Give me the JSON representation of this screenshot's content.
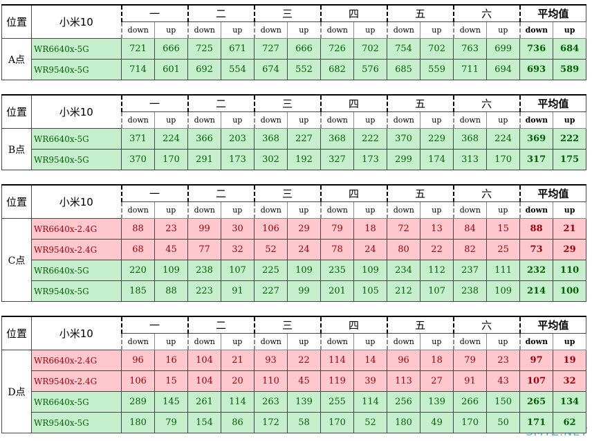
{
  "tables": [
    {
      "header": {
        "position": "位置",
        "device": "小米10",
        "groups": [
          "一",
          "二",
          "三",
          "四",
          "五",
          "六",
          "平均值"
        ],
        "sub": [
          "down",
          "up",
          "down",
          "up",
          "down",
          "up",
          "down",
          "up",
          "down",
          "up",
          "down",
          "up",
          "down",
          "up"
        ]
      },
      "location": "A点",
      "rows": [
        {
          "name": "WR6640x-5G",
          "color": "#c6efce",
          "values": [
            721,
            666,
            725,
            671,
            727,
            666,
            726,
            702,
            754,
            702,
            763,
            699,
            736,
            684
          ]
        },
        {
          "name": "WR9540x-5G",
          "color": "#c6efce",
          "values": [
            714,
            601,
            692,
            554,
            674,
            552,
            682,
            576,
            685,
            559,
            711,
            694,
            693,
            589
          ]
        }
      ]
    },
    {
      "header": {
        "position": "位置",
        "device": "小米10",
        "groups": [
          "一",
          "二",
          "三",
          "四",
          "五",
          "六",
          "平均值"
        ],
        "sub": [
          "down",
          "up",
          "down",
          "up",
          "down",
          "up",
          "down",
          "up",
          "down",
          "up",
          "down",
          "up",
          "down",
          "up"
        ]
      },
      "location": "B点",
      "rows": [
        {
          "name": "WR6640x-5G",
          "color": "#c6efce",
          "values": [
            371,
            224,
            366,
            203,
            368,
            227,
            368,
            222,
            370,
            229,
            368,
            224,
            369,
            222
          ]
        },
        {
          "name": "WR9540x-5G",
          "color": "#c6efce",
          "values": [
            370,
            170,
            291,
            173,
            302,
            192,
            327,
            173,
            299,
            174,
            313,
            170,
            317,
            175
          ]
        }
      ]
    },
    {
      "header": {
        "position": "位置",
        "device": "小米10",
        "groups": [
          "一",
          "二",
          "三",
          "四",
          "五",
          "六",
          "平均值"
        ],
        "sub": [
          "down",
          "up",
          "down",
          "up",
          "down",
          "up",
          "down",
          "up",
          "down",
          "up",
          "down",
          "up",
          "down",
          "up"
        ]
      },
      "location": "C点",
      "rows": [
        {
          "name": "WR6640x-2.4G",
          "color": "#ffc7ce",
          "values": [
            88,
            23,
            99,
            30,
            106,
            29,
            79,
            18,
            72,
            13,
            84,
            15,
            88,
            21
          ]
        },
        {
          "name": "WR9540x-2.4G",
          "color": "#ffc7ce",
          "values": [
            68,
            45,
            77,
            32,
            52,
            24,
            78,
            24,
            80,
            22,
            82,
            25,
            73,
            29
          ]
        },
        {
          "name": "WR6640x-5G",
          "color": "#c6efce",
          "values": [
            220,
            109,
            238,
            107,
            225,
            109,
            235,
            109,
            234,
            112,
            237,
            111,
            232,
            110
          ]
        },
        {
          "name": "WR9540x-5G",
          "color": "#c6efce",
          "values": [
            185,
            88,
            223,
            91,
            227,
            99,
            201,
            105,
            212,
            107,
            238,
            109,
            214,
            100
          ]
        }
      ]
    },
    {
      "header": {
        "position": "位置",
        "device": "小米10",
        "groups": [
          "一",
          "二",
          "三",
          "四",
          "五",
          "六",
          "平均值"
        ],
        "sub": [
          "down",
          "up",
          "down",
          "up",
          "down",
          "up",
          "down",
          "up",
          "down",
          "up",
          "down",
          "up",
          "down",
          "up"
        ]
      },
      "location": "D点",
      "rows": [
        {
          "name": "WR6640x-2.4G",
          "color": "#ffc7ce",
          "values": [
            96,
            16,
            104,
            21,
            93,
            22,
            114,
            14,
            96,
            18,
            79,
            23,
            97,
            19
          ]
        },
        {
          "name": "WR9540x-2.4G",
          "color": "#ffc7ce",
          "values": [
            106,
            15,
            104,
            20,
            110,
            45,
            119,
            39,
            113,
            27,
            91,
            43,
            107,
            32
          ]
        },
        {
          "name": "WR6640x-5G",
          "color": "#c6efce",
          "values": [
            289,
            145,
            261,
            114,
            263,
            139,
            255,
            114,
            256,
            139,
            266,
            150,
            265,
            134
          ]
        },
        {
          "name": "WR9540x-5G",
          "color": "#c6efce",
          "values": [
            180,
            79,
            154,
            86,
            172,
            58,
            170,
            52,
            180,
            49,
            170,
            50,
            171,
            62
          ]
        }
      ]
    }
  ],
  "watermark": "SMYZ.NET"
}
